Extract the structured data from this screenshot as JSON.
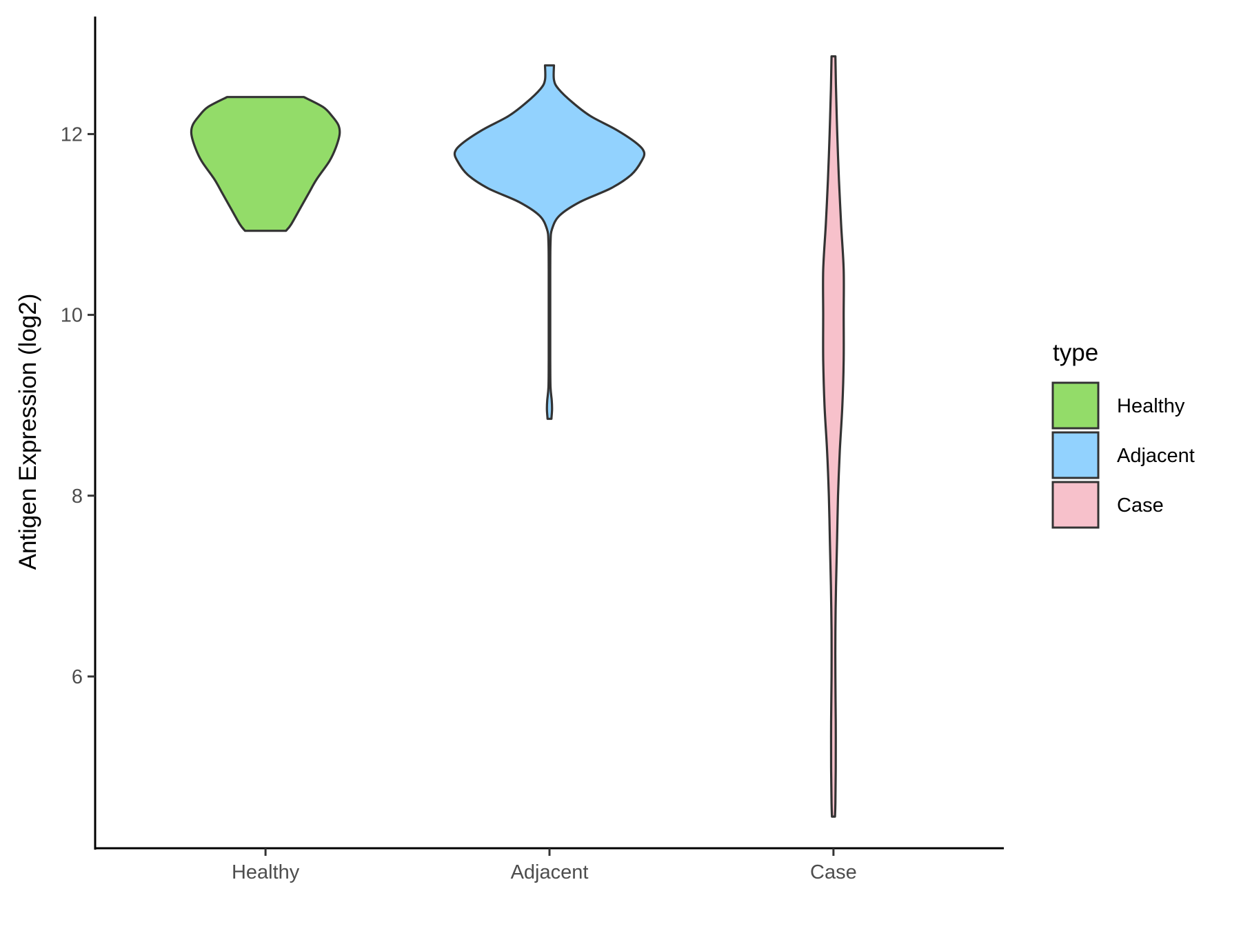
{
  "chart_data": {
    "type": "violin",
    "title": "",
    "xlabel": "",
    "ylabel": "Antigen Expression (log2)",
    "ylim": [
      4.1,
      13.3
    ],
    "yticks": [
      6,
      8,
      10,
      12
    ],
    "categories": [
      "Healthy",
      "Adjacent",
      "Case"
    ],
    "colors": {
      "Healthy": "#93dc69",
      "Adjacent": "#92d2fe",
      "Case": "#f7c1cb"
    },
    "series": [
      {
        "category": "Healthy",
        "min": 10.93,
        "max": 12.41,
        "profile": [
          [
            10.93,
            0.16
          ],
          [
            11.0,
            0.2
          ],
          [
            11.2,
            0.28
          ],
          [
            11.35,
            0.34
          ],
          [
            11.5,
            0.4
          ],
          [
            11.7,
            0.5
          ],
          [
            11.85,
            0.55
          ],
          [
            12.0,
            0.58
          ],
          [
            12.1,
            0.57
          ],
          [
            12.2,
            0.52
          ],
          [
            12.3,
            0.45
          ],
          [
            12.41,
            0.3
          ]
        ]
      },
      {
        "category": "Adjacent",
        "min": 8.85,
        "max": 12.76,
        "profile": [
          [
            8.85,
            0.015
          ],
          [
            8.95,
            0.02
          ],
          [
            9.05,
            0.018
          ],
          [
            9.2,
            0.008
          ],
          [
            9.5,
            0.006
          ],
          [
            10.0,
            0.006
          ],
          [
            10.5,
            0.006
          ],
          [
            10.8,
            0.008
          ],
          [
            10.95,
            0.02
          ],
          [
            11.1,
            0.08
          ],
          [
            11.25,
            0.24
          ],
          [
            11.4,
            0.48
          ],
          [
            11.55,
            0.64
          ],
          [
            11.7,
            0.72
          ],
          [
            11.8,
            0.74
          ],
          [
            11.9,
            0.68
          ],
          [
            12.05,
            0.52
          ],
          [
            12.2,
            0.32
          ],
          [
            12.35,
            0.18
          ],
          [
            12.5,
            0.07
          ],
          [
            12.6,
            0.035
          ],
          [
            12.76,
            0.035
          ]
        ]
      },
      {
        "category": "Case",
        "min": 4.45,
        "max": 12.86,
        "profile": [
          [
            4.45,
            0.012
          ],
          [
            4.6,
            0.015
          ],
          [
            5.0,
            0.018
          ],
          [
            5.5,
            0.018
          ],
          [
            6.0,
            0.015
          ],
          [
            6.5,
            0.015
          ],
          [
            7.0,
            0.02
          ],
          [
            7.5,
            0.028
          ],
          [
            8.0,
            0.036
          ],
          [
            8.5,
            0.05
          ],
          [
            9.0,
            0.07
          ],
          [
            9.5,
            0.08
          ],
          [
            10.0,
            0.08
          ],
          [
            10.5,
            0.08
          ],
          [
            11.0,
            0.06
          ],
          [
            11.5,
            0.043
          ],
          [
            12.0,
            0.03
          ],
          [
            12.5,
            0.02
          ],
          [
            12.86,
            0.015
          ]
        ]
      }
    ],
    "legend": {
      "title": "type",
      "position": "right",
      "entries": [
        "Healthy",
        "Adjacent",
        "Case"
      ]
    },
    "grid": false
  }
}
